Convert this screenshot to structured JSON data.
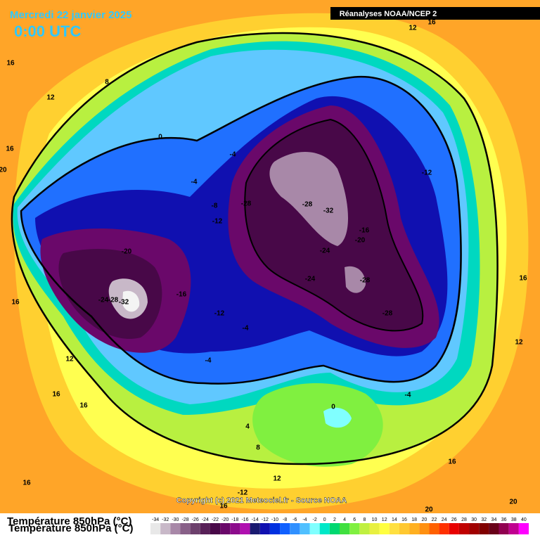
{
  "header": {
    "date": "Mercredi 22 janvier 2025",
    "time": "0:00 UTC",
    "source": "Réanalyses NOAA/NCEP 2"
  },
  "footer": {
    "copyright": "Copyright (c) 2021 Meteociel.fr - Source NOAA"
  },
  "legend": {
    "title": "Température 850hPa (°C)",
    "scale": [
      -34,
      -32,
      -30,
      -28,
      -26,
      -24,
      -22,
      -20,
      -18,
      -16,
      -14,
      -12,
      -10,
      -8,
      -6,
      -4,
      -2,
      0,
      2,
      4,
      6,
      8,
      10,
      12,
      14,
      16,
      18,
      20,
      22,
      24,
      26,
      28,
      30,
      32,
      34,
      36,
      38,
      40
    ],
    "colors": [
      "#e8e8e8",
      "#c8b8c8",
      "#a888a8",
      "#886088",
      "#6c406c",
      "#582058",
      "#480848",
      "#6a086a",
      "#8c0c8c",
      "#b010b0",
      "#1a1a70",
      "#1010b0",
      "#0030e0",
      "#1060ff",
      "#3090ff",
      "#50c0ff",
      "#80ffff",
      "#00e8c8",
      "#00d870",
      "#40e040",
      "#80f040",
      "#c0f040",
      "#e8f040",
      "#ffff40",
      "#ffe040",
      "#ffc830",
      "#ffb020",
      "#ff9010",
      "#ff6000",
      "#ff3000",
      "#e80000",
      "#c00000",
      "#a00000",
      "#800000",
      "#680018",
      "#900050",
      "#c00090",
      "#ff00ff"
    ]
  },
  "map": {
    "labels": [
      12,
      16,
      16,
      8,
      12,
      0,
      16,
      -4,
      20,
      -4,
      -12,
      -28,
      -28,
      -32,
      -8,
      -12,
      -16,
      -20,
      -20,
      -24,
      -24,
      -28,
      16,
      -16,
      -24,
      -28,
      -32,
      -12,
      -28,
      16,
      -4,
      12,
      -4,
      12,
      16,
      16,
      -4,
      0,
      4,
      8,
      16,
      12,
      16,
      -12,
      16,
      20,
      20
    ]
  }
}
